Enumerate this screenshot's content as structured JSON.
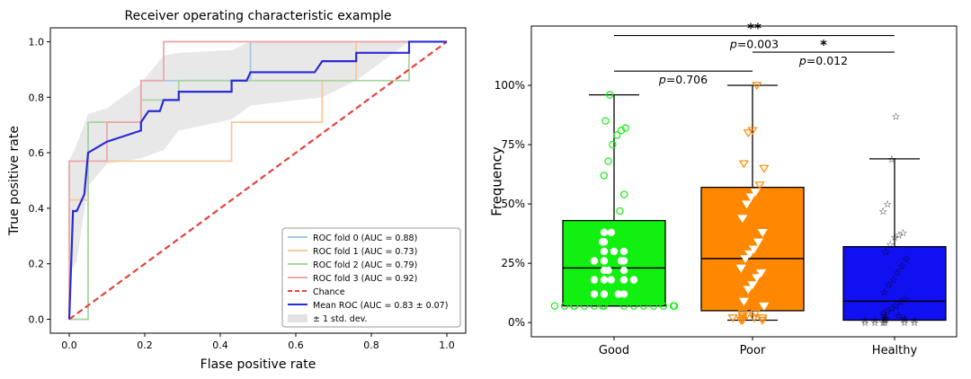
{
  "chart_data": [
    {
      "type": "line",
      "title": "Receiver operating characteristic example",
      "xlabel": "Flase positive rate",
      "ylabel": "True positive rate",
      "xlim": [
        -0.05,
        1.05
      ],
      "ylim": [
        -0.05,
        1.05
      ],
      "xticks": [
        "0.0",
        "0.2",
        "0.4",
        "0.6",
        "0.8",
        "1.0"
      ],
      "yticks": [
        "0.0",
        "0.2",
        "0.4",
        "0.6",
        "0.8",
        "1.0"
      ],
      "legend_position": "lower-right",
      "series": [
        {
          "name": "ROC fold 0 (AUC = 0.88)",
          "color": "#a6c8e4",
          "x": [
            0,
            0,
            0.05,
            0.05,
            0.19,
            0.19,
            0.48,
            0.48,
            1.0
          ],
          "y": [
            0,
            0.57,
            0.57,
            0.71,
            0.71,
            0.86,
            0.86,
            1.0,
            1.0
          ]
        },
        {
          "name": "ROC fold 1 (AUC = 0.73)",
          "color": "#f7c99a",
          "x": [
            0,
            0,
            0.05,
            0.05,
            0.43,
            0.43,
            0.67,
            0.67,
            0.76,
            0.76,
            1.0
          ],
          "y": [
            0,
            0.43,
            0.43,
            0.57,
            0.57,
            0.71,
            0.71,
            0.86,
            0.86,
            1.0,
            1.0
          ]
        },
        {
          "name": "ROC fold 2 (AUC = 0.79)",
          "color": "#a9d5a0",
          "x": [
            0,
            0.05,
            0.05,
            0.19,
            0.19,
            0.29,
            0.29,
            0.9,
            0.9,
            1.0
          ],
          "y": [
            0,
            0,
            0.71,
            0.71,
            0.79,
            0.79,
            0.86,
            0.86,
            1.0,
            1.0
          ]
        },
        {
          "name": "ROC fold 3 (AUC = 0.92)",
          "color": "#eda9a9",
          "x": [
            0,
            0,
            0.1,
            0.1,
            0.19,
            0.19,
            0.25,
            0.25,
            1.0
          ],
          "y": [
            0,
            0.57,
            0.57,
            0.71,
            0.71,
            0.86,
            0.86,
            1.0,
            1.0
          ]
        },
        {
          "name": "Chance",
          "color": "#e8413a",
          "dashed": true,
          "x": [
            0,
            1
          ],
          "y": [
            0,
            1
          ]
        },
        {
          "name": "Mean ROC (AUC = 0.83 ± 0.07)",
          "color": "#2b2bd6",
          "x": [
            0,
            0.01,
            0.02,
            0.04,
            0.05,
            0.1,
            0.19,
            0.19,
            0.21,
            0.24,
            0.25,
            0.29,
            0.29,
            0.38,
            0.43,
            0.43,
            0.47,
            0.48,
            0.65,
            0.67,
            0.76,
            0.76,
            0.9,
            0.9,
            1.0
          ],
          "y": [
            0,
            0.39,
            0.39,
            0.45,
            0.6,
            0.64,
            0.68,
            0.71,
            0.75,
            0.75,
            0.79,
            0.79,
            0.82,
            0.82,
            0.82,
            0.86,
            0.86,
            0.89,
            0.89,
            0.93,
            0.93,
            0.96,
            0.96,
            1.0,
            1.0
          ]
        },
        {
          "name": "± 1 std. dev.",
          "color": "#d6d6d6",
          "band": true,
          "x": [
            0,
            0.02,
            0.05,
            0.1,
            0.19,
            0.25,
            0.29,
            0.43,
            0.48,
            0.67,
            0.76,
            0.9,
            1.0
          ],
          "lower": [
            0.16,
            0.21,
            0.48,
            0.56,
            0.58,
            0.61,
            0.68,
            0.72,
            0.77,
            0.8,
            0.86,
            1.0,
            1.0
          ],
          "upper": [
            0.57,
            0.63,
            0.74,
            0.76,
            0.85,
            0.95,
            0.96,
            0.97,
            1.0,
            1.0,
            1.0,
            1.0,
            1.0
          ]
        }
      ]
    },
    {
      "type": "box",
      "xlabel": "",
      "ylabel": "Frequency",
      "ylim": [
        -0.06,
        1.25
      ],
      "yticks": [
        "0%",
        "25%",
        "50%",
        "75%",
        "100%"
      ],
      "categories": [
        "Good",
        "Poor",
        "Healthy"
      ],
      "boxes": [
        {
          "name": "Good",
          "color": "#11f011",
          "marker": "circle",
          "whisker_low": 0.07,
          "q1": 0.07,
          "median": 0.23,
          "q3": 0.43,
          "whisker_high": 0.96,
          "points": [
            0.07,
            0.07,
            0.07,
            0.07,
            0.07,
            0.07,
            0.07,
            0.07,
            0.07,
            0.07,
            0.07,
            0.07,
            0.07,
            0.07,
            0.07,
            0.12,
            0.12,
            0.12,
            0.12,
            0.18,
            0.18,
            0.18,
            0.18,
            0.18,
            0.22,
            0.22,
            0.22,
            0.26,
            0.26,
            0.26,
            0.26,
            0.3,
            0.3,
            0.3,
            0.34,
            0.34,
            0.38,
            0.38,
            0.47,
            0.54,
            0.62,
            0.68,
            0.75,
            0.79,
            0.81,
            0.82,
            0.85,
            0.96
          ]
        },
        {
          "name": "Poor",
          "color": "#ff8800",
          "marker": "triangle",
          "whisker_low": 0.01,
          "q1": 0.05,
          "median": 0.27,
          "q3": 0.57,
          "whisker_high": 1.0,
          "points": [
            0.01,
            0.01,
            0.01,
            0.02,
            0.02,
            0.02,
            0.02,
            0.03,
            0.03,
            0.04,
            0.04,
            0.07,
            0.09,
            0.14,
            0.16,
            0.19,
            0.21,
            0.23,
            0.27,
            0.29,
            0.31,
            0.34,
            0.38,
            0.44,
            0.5,
            0.53,
            0.55,
            0.58,
            0.65,
            0.67,
            0.8,
            0.81,
            1.0
          ]
        },
        {
          "name": "Healthy",
          "color": "#1010f0",
          "marker": "star",
          "whisker_low": 0.01,
          "q1": 0.01,
          "median": 0.09,
          "q3": 0.32,
          "whisker_high": 0.69,
          "points": [
            0.0,
            0.0,
            0.0,
            0.0,
            0.0,
            0.0,
            0.01,
            0.01,
            0.01,
            0.01,
            0.01,
            0.01,
            0.02,
            0.02,
            0.02,
            0.03,
            0.03,
            0.04,
            0.05,
            0.06,
            0.07,
            0.09,
            0.1,
            0.13,
            0.16,
            0.18,
            0.21,
            0.24,
            0.27,
            0.3,
            0.33,
            0.36,
            0.37,
            0.38,
            0.47,
            0.5,
            0.69,
            0.87
          ]
        }
      ],
      "annotations": [
        {
          "from": "Good",
          "to": "Poor",
          "level": 1.06,
          "text": "p=0.706"
        },
        {
          "from": "Poor",
          "to": "Healthy",
          "level": 1.14,
          "text": "p=0.012",
          "stars": "*"
        },
        {
          "from": "Good",
          "to": "Healthy",
          "level": 1.21,
          "text": "p=0.003",
          "stars": "**"
        }
      ]
    }
  ]
}
